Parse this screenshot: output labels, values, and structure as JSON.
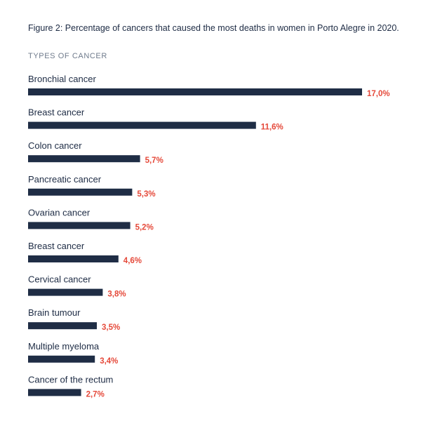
{
  "chart_data": {
    "type": "bar",
    "orientation": "horizontal",
    "title": "Figure 2: Percentage of cancers that caused the most deaths in women in Porto Alegre in 2020.",
    "category_axis_label": "TYPES OF CANCER",
    "categories": [
      "Bronchial cancer",
      "Breast cancer",
      "Colon cancer",
      "Pancreatic cancer",
      "Ovarian cancer",
      "Breast cancer",
      "Cervical cancer",
      "Brain tumour",
      "Multiple myeloma",
      "Cancer of the rectum"
    ],
    "values": [
      17.0,
      11.6,
      5.7,
      5.3,
      5.2,
      4.6,
      3.8,
      3.5,
      3.4,
      2.7
    ],
    "value_labels": [
      "17,0%",
      "11,6%",
      "5,7%",
      "5,3%",
      "5,2%",
      "4,6%",
      "3,8%",
      "3,5%",
      "3,4%",
      "2,7%"
    ],
    "xlim": [
      0,
      17.0
    ],
    "grid": false,
    "legend": "none",
    "colors": {
      "bar": "#1f2d45",
      "value_label": "#e5493a",
      "category_label": "#1d2b44"
    }
  }
}
